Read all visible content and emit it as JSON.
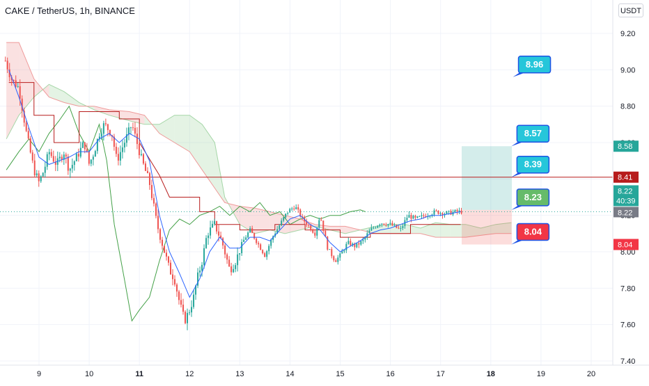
{
  "header": {
    "title": "CAKE / TetherUS, 1h, BINANCE",
    "currency": "USDT"
  },
  "chart_data": {
    "type": "candlestick",
    "title": "CAKE / TetherUS, 1h, BINANCE",
    "ylim": [
      7.4,
      9.3
    ],
    "x_range_days": [
      8.35,
      20.3
    ],
    "y_ticks": [
      "9.20",
      "9.00",
      "8.80",
      "8.60",
      "8.40",
      "8.20",
      "8.00",
      "7.80",
      "7.60",
      "7.40"
    ],
    "x_ticks": [
      {
        "day": 9,
        "label": "9",
        "bold": false
      },
      {
        "day": 10,
        "label": "10",
        "bold": false
      },
      {
        "day": 11,
        "label": "11",
        "bold": true
      },
      {
        "day": 12,
        "label": "12",
        "bold": false
      },
      {
        "day": 13,
        "label": "13",
        "bold": false
      },
      {
        "day": 14,
        "label": "14",
        "bold": false
      },
      {
        "day": 15,
        "label": "15",
        "bold": false
      },
      {
        "day": 16,
        "label": "16",
        "bold": false
      },
      {
        "day": 17,
        "label": "17",
        "bold": false
      },
      {
        "day": 18,
        "label": "18",
        "bold": true
      },
      {
        "day": 19,
        "label": "19",
        "bold": false
      },
      {
        "day": 20,
        "label": "20",
        "bold": false
      }
    ],
    "grid": true,
    "colors": {
      "up": "#26a69a",
      "down": "#ef5350",
      "tenkan": "#2962ff",
      "kijun": "#b71c1c",
      "lagging": "#43a047",
      "span_a": "#a5d6a7",
      "span_b": "#ef9a9a",
      "hline": "#b71c1c",
      "current": "#26a69a",
      "label_blue": "#26c6da",
      "label_green": "#66bb6a",
      "label_red": "#f23645"
    },
    "horizontal_line": {
      "value": 8.41,
      "label": "8.41"
    },
    "current_price": {
      "value": 8.22,
      "label": "8.22",
      "countdown": "40:39",
      "line_label": "8.22"
    },
    "axis_badges": [
      {
        "value": 8.58,
        "label": "8.58",
        "color": "#26a69a"
      },
      {
        "value": 8.04,
        "label": "8.04",
        "color": "#f23645"
      }
    ],
    "position": {
      "type": "long",
      "entry": 8.23,
      "target": 8.58,
      "stop": 8.04,
      "start_day": 17.42,
      "end_day": 18.42
    },
    "callouts": [
      {
        "label": "8.96",
        "point": [
          18.44,
          8.96
        ],
        "color": "#26c6da"
      },
      {
        "label": "8.57",
        "point": [
          18.41,
          8.58
        ],
        "color": "#26c6da"
      },
      {
        "label": "8.39",
        "point": [
          18.41,
          8.41
        ],
        "color": "#26c6da"
      },
      {
        "label": "8.23",
        "point": [
          18.41,
          8.23
        ],
        "color": "#66bb6a"
      },
      {
        "label": "8.04",
        "point": [
          18.41,
          8.04
        ],
        "color": "#f23645"
      }
    ],
    "price_path": [
      [
        8.33,
        9.05
      ],
      [
        8.45,
        8.95
      ],
      [
        8.6,
        8.9
      ],
      [
        8.75,
        8.65
      ],
      [
        8.9,
        8.45
      ],
      [
        9.0,
        8.38
      ],
      [
        9.1,
        8.45
      ],
      [
        9.2,
        8.55
      ],
      [
        9.35,
        8.48
      ],
      [
        9.5,
        8.55
      ],
      [
        9.6,
        8.45
      ],
      [
        9.75,
        8.52
      ],
      [
        9.9,
        8.6
      ],
      [
        10.0,
        8.48
      ],
      [
        10.1,
        8.55
      ],
      [
        10.2,
        8.65
      ],
      [
        10.3,
        8.7
      ],
      [
        10.45,
        8.65
      ],
      [
        10.55,
        8.5
      ],
      [
        10.7,
        8.6
      ],
      [
        10.85,
        8.7
      ],
      [
        10.95,
        8.6
      ],
      [
        11.05,
        8.5
      ],
      [
        11.2,
        8.38
      ],
      [
        11.35,
        8.15
      ],
      [
        11.5,
        8.0
      ],
      [
        11.6,
        7.9
      ],
      [
        11.7,
        7.85
      ],
      [
        11.8,
        7.72
      ],
      [
        11.9,
        7.62
      ],
      [
        12.0,
        7.68
      ],
      [
        12.08,
        7.75
      ],
      [
        12.15,
        7.85
      ],
      [
        12.25,
        7.95
      ],
      [
        12.35,
        8.1
      ],
      [
        12.5,
        8.15
      ],
      [
        12.65,
        8.05
      ],
      [
        12.8,
        7.9
      ],
      [
        12.92,
        7.95
      ],
      [
        13.05,
        8.05
      ],
      [
        13.2,
        8.12
      ],
      [
        13.35,
        8.05
      ],
      [
        13.5,
        7.98
      ],
      [
        13.65,
        8.08
      ],
      [
        13.8,
        8.15
      ],
      [
        13.95,
        8.22
      ],
      [
        14.1,
        8.25
      ],
      [
        14.25,
        8.18
      ],
      [
        14.35,
        8.15
      ],
      [
        14.5,
        8.1
      ],
      [
        14.6,
        8.2
      ],
      [
        14.75,
        8.02
      ],
      [
        14.9,
        7.95
      ],
      [
        15.0,
        7.98
      ],
      [
        15.15,
        8.05
      ],
      [
        15.3,
        8.03
      ],
      [
        15.45,
        8.06
      ],
      [
        15.6,
        8.12
      ],
      [
        15.8,
        8.16
      ],
      [
        16.0,
        8.15
      ],
      [
        16.2,
        8.12
      ],
      [
        16.35,
        8.2
      ],
      [
        16.5,
        8.18
      ],
      [
        16.7,
        8.2
      ],
      [
        16.9,
        8.22
      ],
      [
        17.1,
        8.21
      ],
      [
        17.3,
        8.22
      ],
      [
        17.42,
        8.22
      ]
    ],
    "tenkan_path": [
      [
        8.4,
        9.0
      ],
      [
        8.6,
        8.85
      ],
      [
        8.8,
        8.68
      ],
      [
        9.0,
        8.52
      ],
      [
        9.2,
        8.48
      ],
      [
        9.4,
        8.5
      ],
      [
        9.6,
        8.52
      ],
      [
        9.8,
        8.55
      ],
      [
        10.0,
        8.55
      ],
      [
        10.2,
        8.62
      ],
      [
        10.4,
        8.65
      ],
      [
        10.6,
        8.6
      ],
      [
        10.8,
        8.65
      ],
      [
        11.0,
        8.62
      ],
      [
        11.2,
        8.5
      ],
      [
        11.4,
        8.2
      ],
      [
        11.6,
        8.0
      ],
      [
        11.8,
        7.88
      ],
      [
        12.0,
        7.75
      ],
      [
        12.2,
        7.85
      ],
      [
        12.4,
        8.0
      ],
      [
        12.6,
        8.08
      ],
      [
        12.8,
        8.02
      ],
      [
        13.0,
        8.02
      ],
      [
        13.2,
        8.08
      ],
      [
        13.4,
        8.08
      ],
      [
        13.6,
        8.06
      ],
      [
        13.8,
        8.12
      ],
      [
        14.0,
        8.18
      ],
      [
        14.2,
        8.2
      ],
      [
        14.4,
        8.15
      ],
      [
        14.6,
        8.12
      ],
      [
        14.8,
        8.05
      ],
      [
        15.0,
        8.0
      ],
      [
        15.2,
        8.03
      ],
      [
        15.4,
        8.06
      ],
      [
        15.6,
        8.1
      ],
      [
        15.8,
        8.12
      ],
      [
        16.0,
        8.13
      ],
      [
        16.2,
        8.15
      ],
      [
        16.4,
        8.17
      ],
      [
        16.6,
        8.18
      ],
      [
        16.8,
        8.2
      ],
      [
        17.0,
        8.2
      ],
      [
        17.2,
        8.21
      ],
      [
        17.4,
        8.22
      ]
    ],
    "kijun_path": [
      [
        8.4,
        8.93
      ],
      [
        8.9,
        8.93
      ],
      [
        8.9,
        8.75
      ],
      [
        9.3,
        8.75
      ],
      [
        9.3,
        8.6
      ],
      [
        9.8,
        8.6
      ],
      [
        9.8,
        8.77
      ],
      [
        10.6,
        8.77
      ],
      [
        10.6,
        8.73
      ],
      [
        11.0,
        8.73
      ],
      [
        11.0,
        8.6
      ],
      [
        11.4,
        8.42
      ],
      [
        11.6,
        8.3
      ],
      [
        12.2,
        8.3
      ],
      [
        12.2,
        8.22
      ],
      [
        12.5,
        8.22
      ],
      [
        12.5,
        8.15
      ],
      [
        13.0,
        8.15
      ],
      [
        13.0,
        8.12
      ],
      [
        13.7,
        8.12
      ],
      [
        13.7,
        8.15
      ],
      [
        14.3,
        8.15
      ],
      [
        14.3,
        8.12
      ],
      [
        15.0,
        8.12
      ],
      [
        15.0,
        8.08
      ],
      [
        15.6,
        8.08
      ],
      [
        15.6,
        8.1
      ],
      [
        16.4,
        8.1
      ],
      [
        16.4,
        8.15
      ],
      [
        17.4,
        8.15
      ]
    ],
    "lagging_path": [
      [
        8.35,
        8.45
      ],
      [
        8.6,
        8.55
      ],
      [
        8.8,
        8.62
      ],
      [
        9.0,
        8.55
      ],
      [
        9.2,
        8.65
      ],
      [
        9.4,
        8.72
      ],
      [
        9.6,
        8.8
      ],
      [
        9.8,
        8.65
      ],
      [
        10.0,
        8.55
      ],
      [
        10.2,
        8.7
      ],
      [
        10.35,
        8.5
      ],
      [
        10.5,
        8.15
      ],
      [
        10.7,
        7.85
      ],
      [
        10.85,
        7.62
      ],
      [
        11.0,
        7.68
      ],
      [
        11.2,
        7.75
      ],
      [
        11.4,
        7.95
      ],
      [
        11.6,
        8.12
      ],
      [
        11.8,
        8.18
      ],
      [
        12.0,
        8.15
      ],
      [
        12.2,
        8.2
      ],
      [
        12.4,
        8.22
      ],
      [
        12.6,
        8.25
      ],
      [
        12.8,
        8.2
      ],
      [
        13.0,
        8.25
      ],
      [
        13.2,
        8.22
      ],
      [
        13.4,
        8.27
      ],
      [
        13.6,
        8.2
      ],
      [
        13.8,
        8.22
      ],
      [
        14.0,
        8.15
      ],
      [
        14.2,
        8.18
      ],
      [
        14.4,
        8.2
      ],
      [
        14.6,
        8.18
      ],
      [
        14.8,
        8.2
      ],
      [
        15.0,
        8.2
      ],
      [
        15.2,
        8.22
      ],
      [
        15.4,
        8.23
      ],
      [
        15.5,
        8.22
      ]
    ],
    "span_a_path": [
      [
        8.35,
        8.62
      ],
      [
        8.6,
        8.75
      ],
      [
        8.9,
        8.85
      ],
      [
        9.2,
        8.92
      ],
      [
        9.5,
        8.88
      ],
      [
        9.8,
        8.82
      ],
      [
        10.1,
        8.78
      ],
      [
        10.4,
        8.75
      ],
      [
        10.8,
        8.72
      ],
      [
        11.1,
        8.7
      ],
      [
        11.4,
        8.7
      ],
      [
        11.7,
        8.75
      ],
      [
        12.0,
        8.75
      ],
      [
        12.25,
        8.7
      ],
      [
        12.5,
        8.6
      ],
      [
        12.7,
        8.3
      ],
      [
        13.0,
        8.15
      ],
      [
        13.3,
        8.1
      ],
      [
        13.6,
        8.12
      ],
      [
        13.9,
        8.1
      ],
      [
        14.2,
        8.12
      ],
      [
        14.5,
        8.14
      ],
      [
        14.8,
        8.12
      ],
      [
        15.1,
        8.1
      ],
      [
        15.4,
        8.12
      ],
      [
        15.7,
        8.14
      ],
      [
        16.0,
        8.15
      ],
      [
        16.3,
        8.15
      ],
      [
        16.6,
        8.13
      ],
      [
        16.9,
        8.16
      ],
      [
        17.2,
        8.15
      ],
      [
        17.5,
        8.15
      ],
      [
        17.8,
        8.13
      ],
      [
        18.1,
        8.15
      ],
      [
        18.41,
        8.16
      ]
    ],
    "span_b_path": [
      [
        8.35,
        9.15
      ],
      [
        8.6,
        9.15
      ],
      [
        8.9,
        8.95
      ],
      [
        9.2,
        8.85
      ],
      [
        9.5,
        8.82
      ],
      [
        9.8,
        8.8
      ],
      [
        10.1,
        8.8
      ],
      [
        10.4,
        8.78
      ],
      [
        10.8,
        8.77
      ],
      [
        11.1,
        8.75
      ],
      [
        11.4,
        8.65
      ],
      [
        11.7,
        8.6
      ],
      [
        12.0,
        8.55
      ],
      [
        12.25,
        8.45
      ],
      [
        12.5,
        8.35
      ],
      [
        12.7,
        8.27
      ],
      [
        13.0,
        8.25
      ],
      [
        13.3,
        8.24
      ],
      [
        13.6,
        8.22
      ],
      [
        13.9,
        8.2
      ],
      [
        14.2,
        8.18
      ],
      [
        14.5,
        8.15
      ],
      [
        14.8,
        8.14
      ],
      [
        15.1,
        8.14
      ],
      [
        15.4,
        8.12
      ],
      [
        15.7,
        8.1
      ],
      [
        16.0,
        8.1
      ],
      [
        16.3,
        8.1
      ],
      [
        16.6,
        8.1
      ],
      [
        16.9,
        8.08
      ],
      [
        17.2,
        8.08
      ],
      [
        17.5,
        8.08
      ],
      [
        17.8,
        8.09
      ],
      [
        18.1,
        8.1
      ],
      [
        18.41,
        8.1
      ]
    ]
  }
}
